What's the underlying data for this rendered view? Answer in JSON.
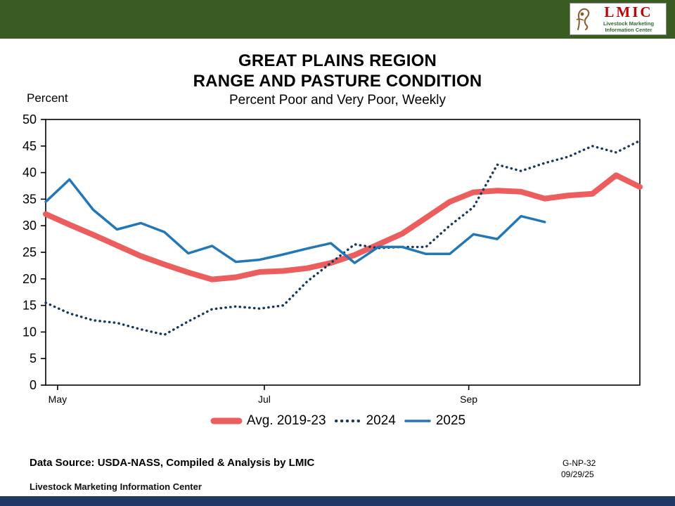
{
  "header": {
    "logo": {
      "brand": "LMIC",
      "org_line1": "Livestock Marketing",
      "org_line2": "Information Center"
    }
  },
  "title": {
    "line1": "GREAT PLAINS REGION",
    "line2": "RANGE AND PASTURE CONDITION",
    "subtitle": "Percent Poor and Very Poor, Weekly"
  },
  "chart_data": {
    "type": "line",
    "title": "GREAT PLAINS REGION - RANGE AND PASTURE CONDITION",
    "subtitle": "Percent Poor and Very Poor, Weekly",
    "ylabel": "Percent",
    "xlabel": "",
    "ylim": [
      0,
      50
    ],
    "ytick_step": 5,
    "grid": false,
    "legend_position": "bottom",
    "weeks_span": 25,
    "x_ticks": [
      {
        "label": "May",
        "week": 0.5
      },
      {
        "label": "Jul",
        "week": 9.2
      },
      {
        "label": "Sep",
        "week": 17.8
      }
    ],
    "series": [
      {
        "name": "Avg. 2019-23",
        "color": "#EC5D5E",
        "style": "solid-thick",
        "values": [
          32.2,
          30.2,
          28.3,
          26.3,
          24.3,
          22.7,
          21.2,
          19.9,
          20.3,
          21.3,
          21.5,
          22.0,
          23.0,
          24.5,
          26.5,
          28.5,
          31.5,
          34.5,
          36.3,
          36.6,
          36.4,
          35.1,
          35.7,
          36.0,
          39.5,
          37.3
        ]
      },
      {
        "name": "2024",
        "color": "#17375D",
        "style": "dotted",
        "values": [
          15.5,
          13.5,
          12.2,
          11.7,
          10.5,
          9.5,
          12.0,
          14.3,
          14.8,
          14.4,
          15.0,
          19.5,
          23.0,
          26.5,
          25.8,
          26.0,
          26.0,
          30.0,
          33.5,
          41.5,
          40.3,
          41.8,
          43.0,
          45.0,
          43.8,
          46.0
        ]
      },
      {
        "name": "2025",
        "color": "#2277B9",
        "style": "solid",
        "values": [
          34.5,
          38.7,
          33.0,
          29.3,
          30.5,
          28.8,
          24.8,
          26.2,
          23.2,
          23.6,
          24.6,
          25.7,
          26.7,
          23.0,
          26.0,
          26.0,
          24.7,
          24.7,
          28.4,
          27.5,
          31.8,
          30.7
        ]
      }
    ]
  },
  "footer": {
    "source": "Data Source:  USDA-NASS, Compiled & Analysis by LMIC",
    "org": "Livestock Marketing Information Center",
    "chart_id": "G-NP-32",
    "date": "09/29/25"
  },
  "colors": {
    "top_bar": "#3A5B22",
    "bottom_bar": "#1F3864",
    "logo_red": "#C00000",
    "logo_green": "#2F6B2F",
    "logo_brown": "#8B5A2B"
  }
}
